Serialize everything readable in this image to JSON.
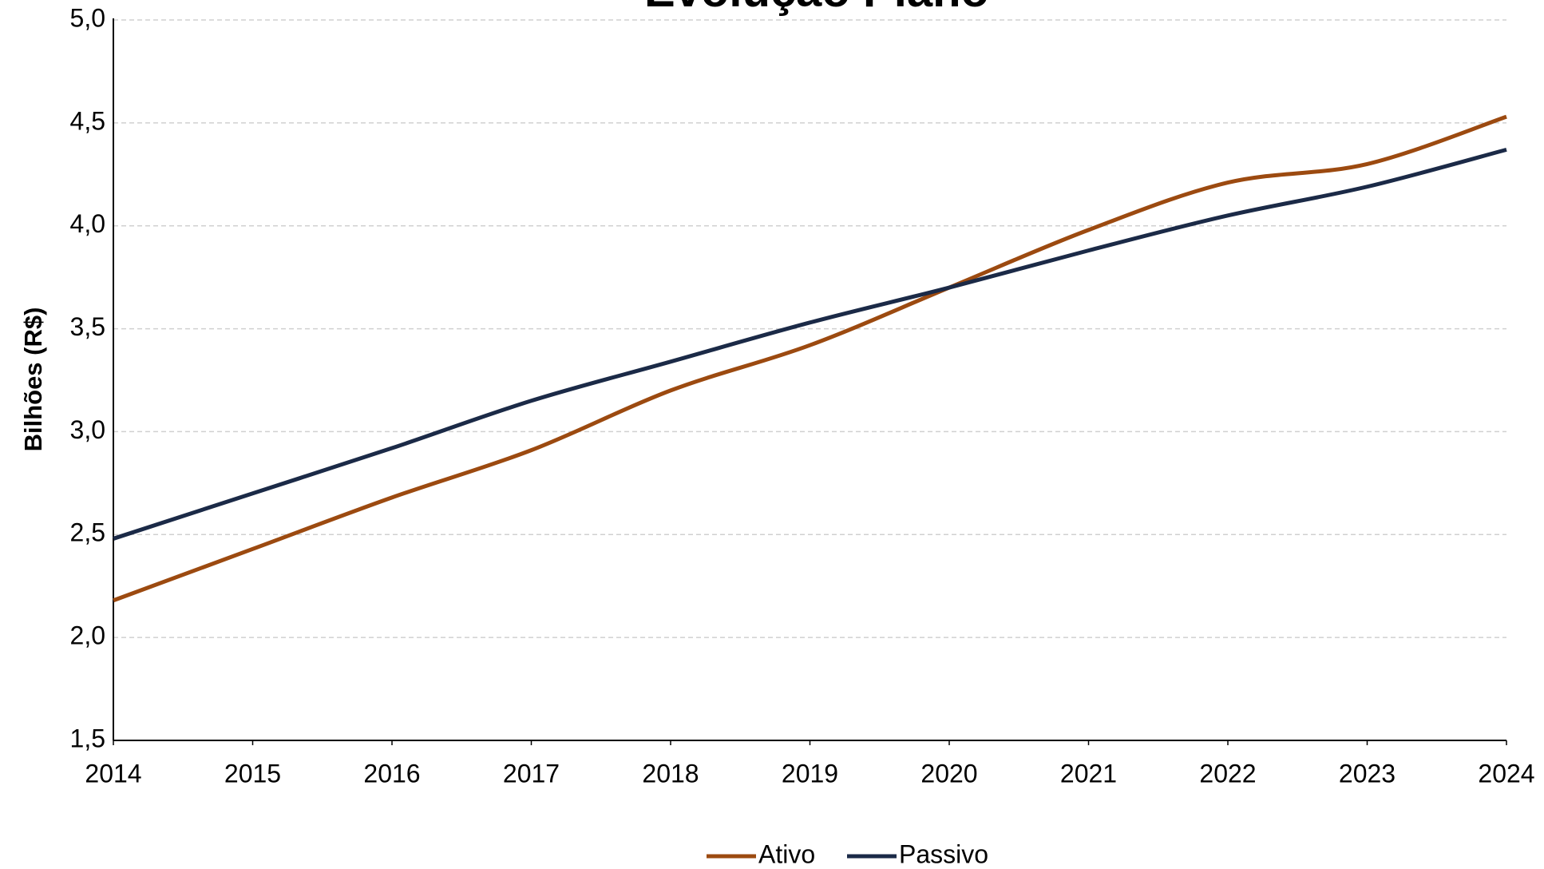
{
  "chart_data": {
    "type": "line",
    "title": "Evolução Plano",
    "y_label": "Bilhões (R$)",
    "x": [
      2014,
      2015,
      2016,
      2017,
      2018,
      2019,
      2020,
      2021,
      2022,
      2023,
      2024
    ],
    "xlim": [
      2014,
      2024
    ],
    "xticks": [
      2014,
      2015,
      2016,
      2017,
      2018,
      2019,
      2020,
      2021,
      2022,
      2023,
      2024
    ],
    "ylim": [
      1.5,
      5.0
    ],
    "yticks": [
      {
        "value": 1.5,
        "label": "1,5"
      },
      {
        "value": 2.0,
        "label": "2,0"
      },
      {
        "value": 2.5,
        "label": "2,5"
      },
      {
        "value": 3.0,
        "label": "3,0"
      },
      {
        "value": 3.5,
        "label": "3,5"
      },
      {
        "value": 4.0,
        "label": "4,0"
      },
      {
        "value": 4.5,
        "label": "4,5"
      },
      {
        "value": 5.0,
        "label": "5,0"
      }
    ],
    "grid": true,
    "legend": "bottom",
    "series": [
      {
        "name": "Ativo",
        "color": "#9c4a10",
        "values": [
          2.18,
          2.43,
          2.68,
          2.91,
          3.2,
          3.42,
          3.7,
          3.98,
          4.21,
          4.3,
          4.53
        ]
      },
      {
        "name": "Passivo",
        "color": "#1b2a47",
        "values": [
          2.48,
          2.7,
          2.92,
          3.15,
          3.34,
          3.53,
          3.7,
          3.88,
          4.05,
          4.19,
          4.37
        ]
      }
    ]
  }
}
